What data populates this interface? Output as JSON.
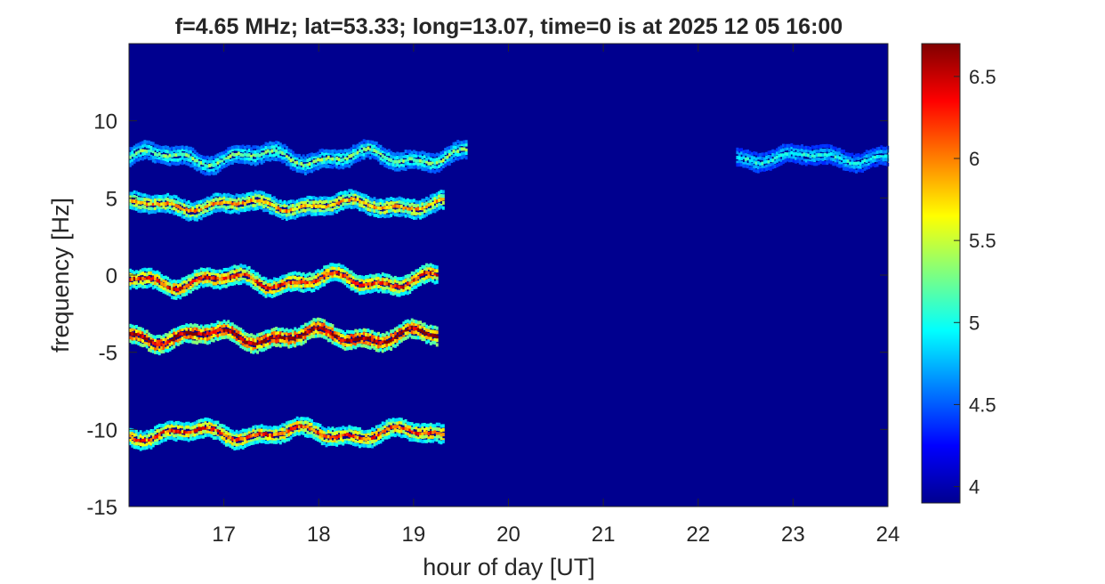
{
  "chart_data": {
    "type": "heatmap",
    "title": "f=4.65 MHz;  lat=53.33; long=13.07, time=0 is at 2025 12 05 16:00",
    "xlabel": "hour of day [UT]",
    "ylabel": "frequency [Hz]",
    "xlim": [
      16.0,
      24.0
    ],
    "ylim": [
      -15,
      15
    ],
    "xticks": [
      17,
      18,
      19,
      20,
      21,
      22,
      23,
      24
    ],
    "yticks": [
      -15,
      -10,
      -5,
      0,
      5,
      10
    ],
    "colorbar": {
      "range": [
        3.9,
        6.7
      ],
      "ticks": [
        4,
        4.5,
        5,
        5.5,
        6,
        6.5
      ],
      "colormap": "jet"
    },
    "background_value": 3.95,
    "traces": [
      {
        "center": 7.6,
        "x_start": 16.0,
        "x_end": 19.55,
        "peak": 5.3,
        "amplitude": 0.35
      },
      {
        "center": 4.5,
        "x_start": 16.0,
        "x_end": 19.3,
        "peak": 5.9,
        "amplitude": 0.25
      },
      {
        "center": -0.4,
        "x_start": 16.0,
        "x_end": 19.25,
        "peak": 6.3,
        "amplitude": 0.35
      },
      {
        "center": -4.0,
        "x_start": 16.0,
        "x_end": 19.25,
        "peak": 6.7,
        "amplitude": 0.35
      },
      {
        "center": -10.3,
        "x_start": 16.0,
        "x_end": 19.3,
        "peak": 6.2,
        "amplitude": 0.3
      },
      {
        "center": 7.6,
        "x_start": 22.4,
        "x_end": 24.0,
        "peak": 5.0,
        "amplitude": 0.25
      }
    ]
  }
}
